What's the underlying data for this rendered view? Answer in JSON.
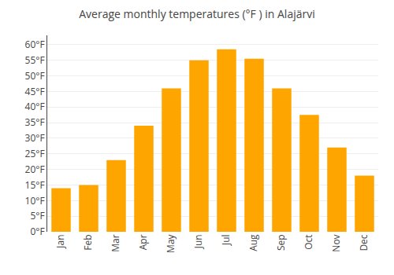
{
  "chart_data": {
    "type": "bar",
    "title": "Average monthly temperatures (°F ) in Alajärvi",
    "categories": [
      "Jan",
      "Feb",
      "Mar",
      "Apr",
      "May",
      "Jun",
      "Jul",
      "Aug",
      "Sep",
      "Oct",
      "Nov",
      "Dec"
    ],
    "values": [
      14,
      15,
      23,
      34,
      46,
      55,
      58.5,
      55.5,
      46,
      37.5,
      27,
      18
    ],
    "color": "#FFA500",
    "ylim": [
      0,
      63
    ],
    "yticks": [
      {
        "value": 0,
        "label": "0°F"
      },
      {
        "value": 5,
        "label": "5°F"
      },
      {
        "value": 10,
        "label": "10°F"
      },
      {
        "value": 15,
        "label": "15°F"
      },
      {
        "value": 20,
        "label": "20°F"
      },
      {
        "value": 25,
        "label": "25°F"
      },
      {
        "value": 30,
        "label": "30°F"
      },
      {
        "value": 35,
        "label": "35°F"
      },
      {
        "value": 40,
        "label": "40°F"
      },
      {
        "value": 45,
        "label": "45°F"
      },
      {
        "value": 50,
        "label": "50°F"
      },
      {
        "value": 55,
        "label": "55°F"
      },
      {
        "value": 60,
        "label": "60°F"
      }
    ],
    "grid": true
  }
}
